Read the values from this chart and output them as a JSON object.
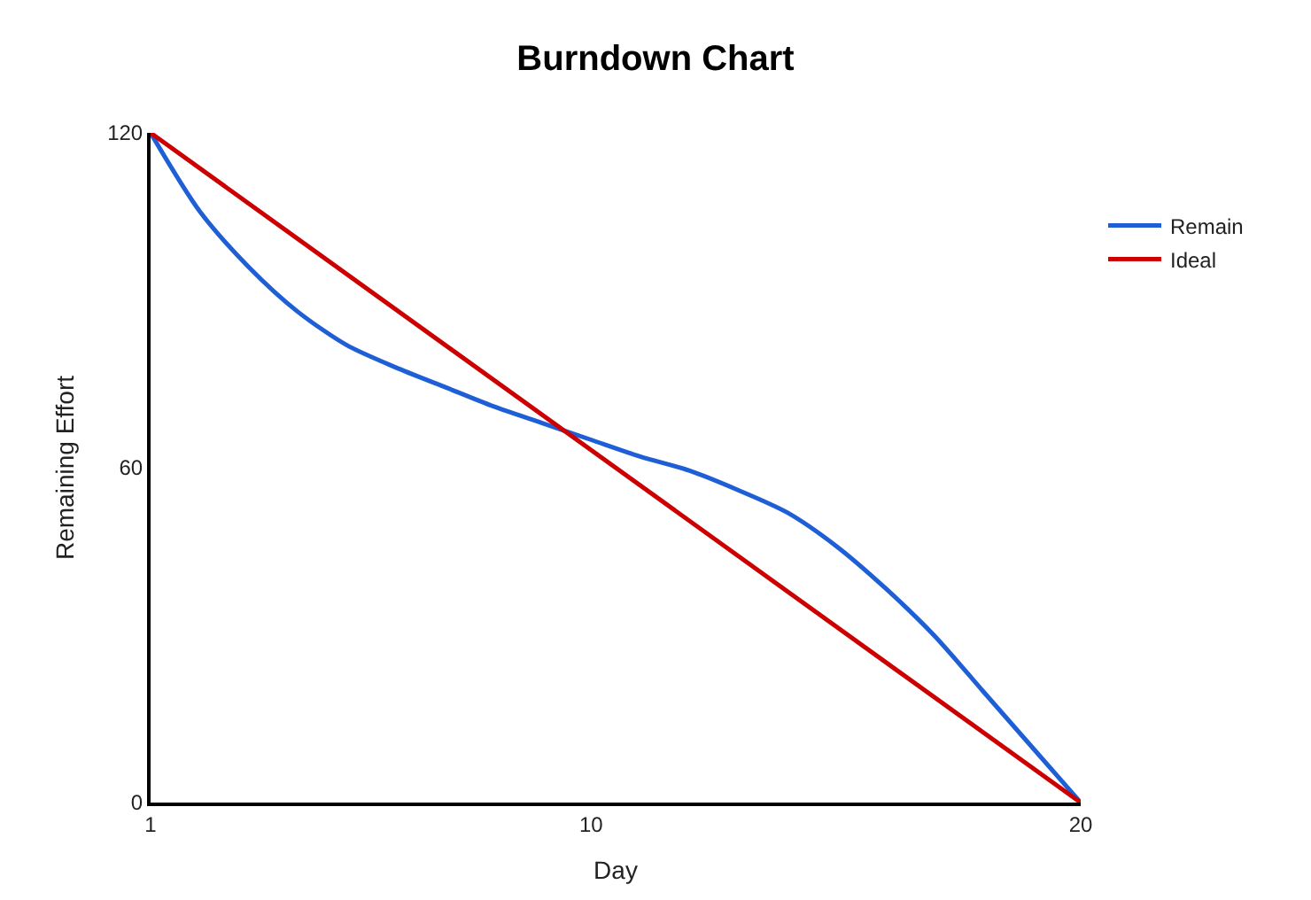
{
  "chart_data": {
    "type": "line",
    "title": "Burndown Chart",
    "xlabel": "Day",
    "ylabel": "Remaining Effort",
    "x": [
      1,
      2,
      3,
      4,
      5,
      6,
      7,
      8,
      9,
      10,
      11,
      12,
      13,
      14,
      15,
      16,
      17,
      18,
      19,
      20
    ],
    "series": [
      {
        "name": "Remain",
        "color": "#1f5fd6",
        "values": [
          120,
          106,
          96,
          88,
          82,
          78,
          74.5,
          71,
          68,
          65,
          62,
          59.5,
          56,
          52,
          46,
          38.5,
          30,
          20,
          10,
          0
        ]
      },
      {
        "name": "Ideal",
        "color": "#cc0000",
        "x": [
          1,
          20
        ],
        "values": [
          120,
          0
        ]
      }
    ],
    "xlim": [
      1,
      20
    ],
    "xticks": [
      1,
      10,
      20
    ],
    "ylim": [
      0,
      120
    ],
    "yticks": [
      0,
      60,
      120
    ],
    "legend": "right",
    "marker": "none",
    "line_style": "solid"
  }
}
